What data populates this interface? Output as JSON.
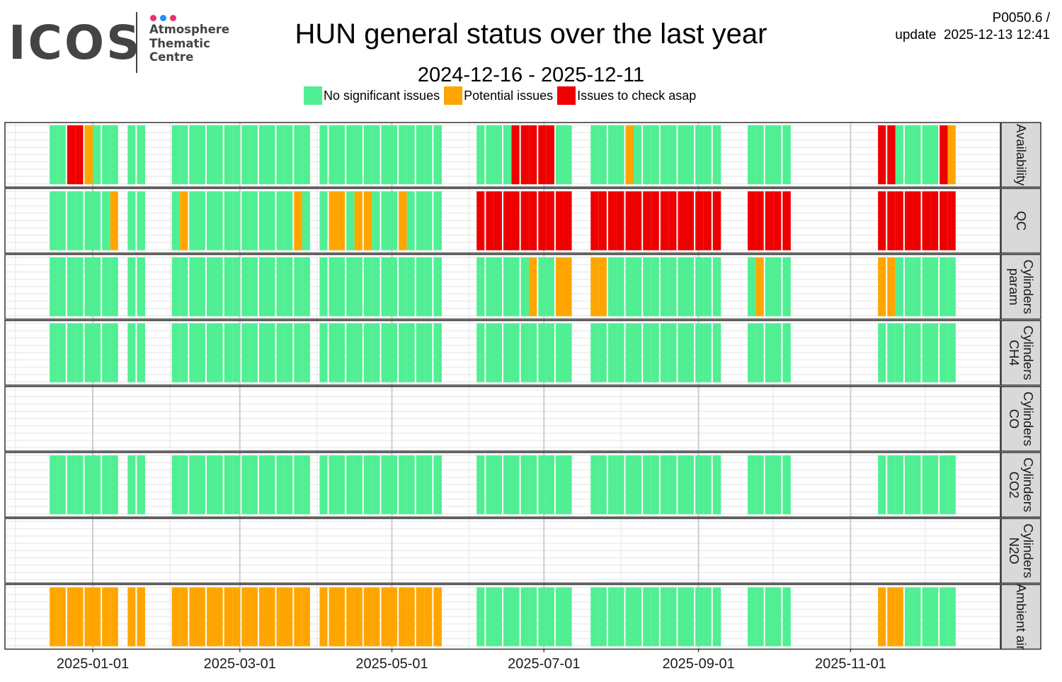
{
  "logo": {
    "wordmark": "ICOS",
    "lines": [
      "Atmosphere",
      "Thematic",
      "Centre"
    ],
    "dot_colors": [
      "#e8336d",
      "#1e90ff",
      "#e8336d"
    ]
  },
  "header": {
    "title": "HUN general status over the last year",
    "version": "P0050.6 /",
    "update_label": "update",
    "update_time": "2025-12-13 12:41"
  },
  "colors": {
    "G": "#50ef93",
    "O": "#ffa500",
    "R": "#ee0000"
  },
  "chart_data": {
    "type": "heatmap",
    "title": "HUN general status over the last year",
    "subtitle": "2024-12-16 - 2025-12-11",
    "legend": [
      {
        "code": "G",
        "label": "No significant issues"
      },
      {
        "code": "O",
        "label": "Potential issues"
      },
      {
        "code": "R",
        "label": "Issues to check asap"
      }
    ],
    "legend_position": "top",
    "reference_date": "2025-01-01",
    "week0_start_day_offset": -17.5,
    "bin_days": 3.5,
    "bins_per_week": 2,
    "encoding": "52 weeks x 2 half-week bins; G/O/R status, '.' = no data",
    "x_ticks": [
      "2025-01-01",
      "2025-03-01",
      "2025-05-01",
      "2025-07-01",
      "2025-09-01",
      "2025-11-01"
    ],
    "x_minor_ticks": [
      "2024-12-01",
      "2025-02-01",
      "2025-04-01",
      "2025-06-01",
      "2025-08-01",
      "2025-10-01",
      "2025-12-01"
    ],
    "xlim_day_offsets": [
      -35,
      364
    ],
    "grid": true,
    "rows": [
      {
        "label": [
          "Availability"
        ],
        "weeks": "GG RR OG GG .G G. .. GG GG GG GG GG GG GG GG .G GG GG GG GG GG GG G. .. .G GG GR RR RR GG .. GG GG OG GG GG GG GG G. .. GG GG G. .. .. .. .. .R RG GG GG RO"
      },
      {
        "label": [
          "QC"
        ],
        "weeks": "GG GG GG GO .G G. .. GO GG GG GG GG GG GG OG .G OO GO OG GG OG GG G. .. .R RR RR RR RR RR .. RR RR RR RR RR RR RR R. .. RR RR R. .. .. .. .. .R RR RR RR RR"
      },
      {
        "label": [
          "Cylinders",
          "param"
        ],
        "weeks": "GG GG GG GG .G G. .. GG GG GG GG GG GG GG GG .G GG GG GG GG GG GG G. .. .G GG GG GO GG OO .. OO GG GG GG GG GG GG G. .. GO GG G. .. .. .. .. .O OG GG GG GG"
      },
      {
        "label": [
          "Cylinders",
          "CH4"
        ],
        "weeks": "GG GG GG GG .G G. .. GG GG GG GG GG GG GG GG .G GG GG GG GG GG GG G. .. .G GG GG GG GG GG .. GG GG GG GG GG GG GG G. .. GG GG G. .. .. .. .. .G GG GG GG GG"
      },
      {
        "label": [
          "Cylinders",
          "CO"
        ],
        "weeks": ".. .. .. .. .. .. .. .. .. .. .. .. .. .. .. .. .. .. .. .. .. .. .. .. .. .. .. .. .. .. .. .. .. .. .. .. .. .. .. .. .. .. .. .. .. .. .. .. .. .. .. .."
      },
      {
        "label": [
          "Cylinders",
          "CO2"
        ],
        "weeks": "GG GG GG GG .G G. .. GG GG GG GG GG GG GG GG .G GG GG GG GG GG GG G. .. .G GG GG GG GG GG .. GG GG GG GG GG GG GG G. .. GG GG G. .. .. .. .. .G GG GG GG GG"
      },
      {
        "label": [
          "Cylinders",
          "N2O"
        ],
        "weeks": ".. .. .. .. .. .. .. .. .. .. .. .. .. .. .. .. .. .. .. .. .. .. .. .. .. .. .. .. .. .. .. .. .. .. .. .. .. .. .. .. .. .. .. .. .. .. .. .. .. .. .. .."
      },
      {
        "label": [
          "Ambient air"
        ],
        "weeks": "OO OO OO OO .O O. .. OO OO OO OO OO OO OO OO .O OO OO OO OO OO OO O. .. .G GG GG GG GG GG .. GG GG GG GG GG GG GG G. .. GG GG G. .. .. .. .. .O OO GG GG GG"
      }
    ]
  }
}
